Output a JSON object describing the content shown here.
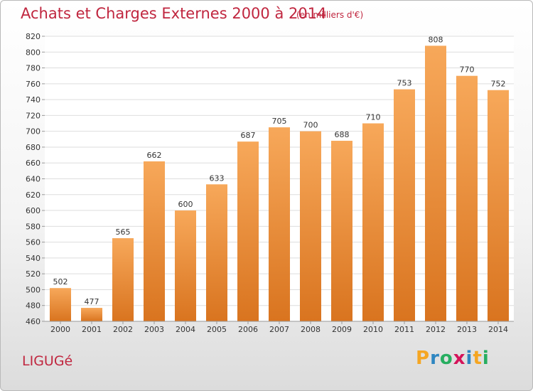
{
  "header": {
    "title": "Achats et Charges Externes 2000 à 2014",
    "subtitle": "(en milliers d'€)"
  },
  "footer": {
    "commune": "LIGUGé",
    "logo": {
      "letters": [
        "P",
        "r",
        "o",
        "x",
        "i",
        "t",
        "i"
      ],
      "colors": [
        "#f5a623",
        "#2e86c1",
        "#27ae60",
        "#d4145a",
        "#2e86c1",
        "#f5a623",
        "#27ae60"
      ]
    }
  },
  "chart_data": {
    "type": "bar",
    "categories": [
      "2000",
      "2001",
      "2002",
      "2003",
      "2004",
      "2005",
      "2006",
      "2007",
      "2008",
      "2009",
      "2010",
      "2011",
      "2012",
      "2013",
      "2014"
    ],
    "values": [
      502,
      477,
      565,
      662,
      600,
      633,
      687,
      705,
      700,
      688,
      710,
      753,
      808,
      770,
      752
    ],
    "title": "Achats et Charges Externes 2000 à 2014",
    "subtitle": "(en milliers d'€)",
    "ylim": [
      460,
      820
    ],
    "ytick_step": 20,
    "grid": true,
    "bar_color_top": "#f7a85a",
    "bar_color_bottom": "#d9741f"
  }
}
